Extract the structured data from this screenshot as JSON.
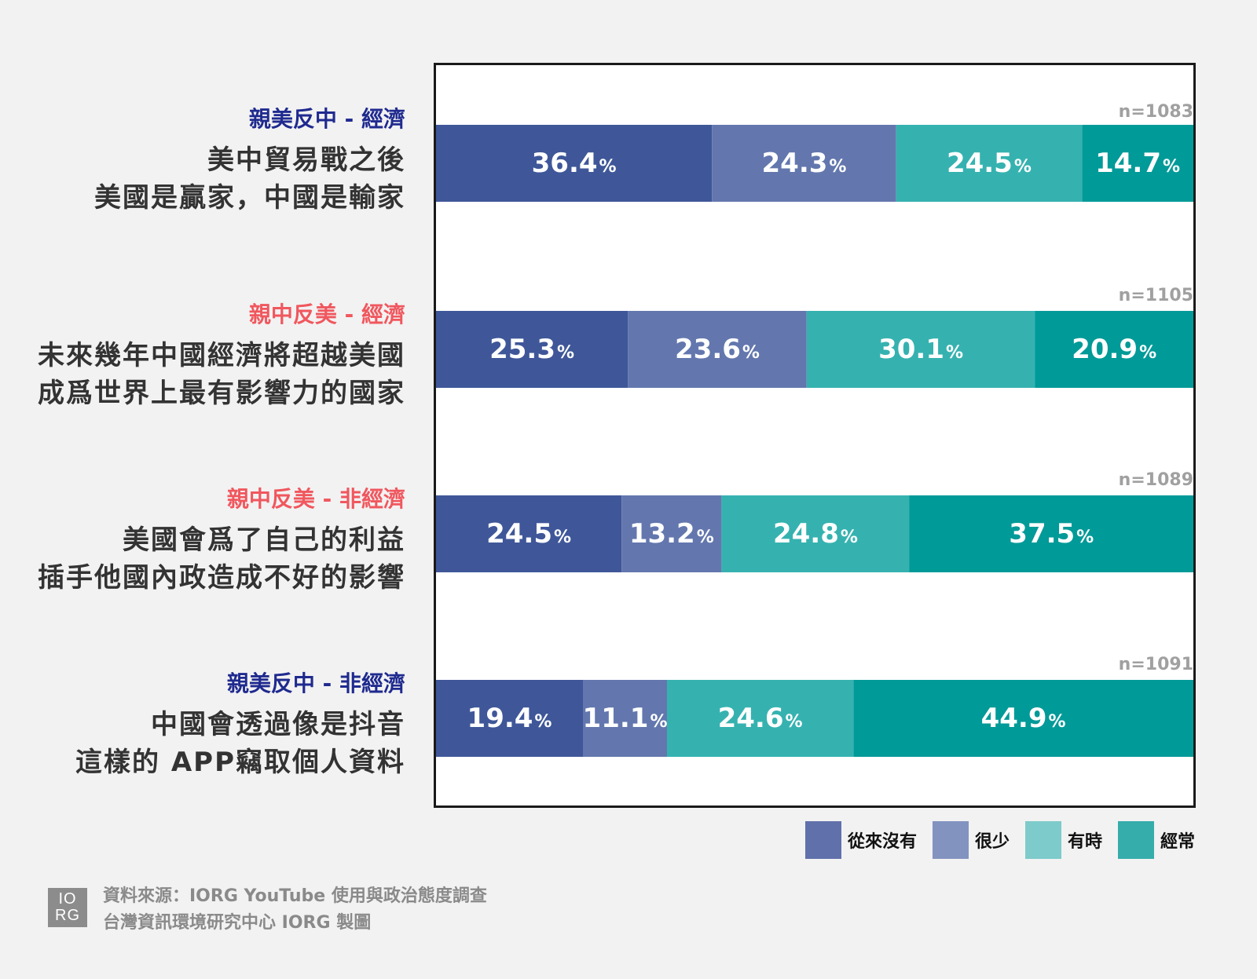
{
  "chart_data": {
    "type": "bar",
    "orientation": "horizontal",
    "stacked": true,
    "unit": "%",
    "categories": [
      {
        "tag": "親美反中 - 經濟",
        "tag_color": "#1f2a8f",
        "lines": [
          "美中貿易戰之後",
          "美國是贏家，中國是輸家"
        ],
        "n": "n=1083"
      },
      {
        "tag": "親中反美 - 經濟",
        "tag_color": "#f0575e",
        "lines": [
          "未來幾年中國經濟將超越美國",
          "成爲世界上最有影響力的國家"
        ],
        "n": "n=1105"
      },
      {
        "tag": "親中反美 - 非經濟",
        "tag_color": "#f0575e",
        "lines": [
          "美國會爲了自己的利益",
          "插手他國內政造成不好的影響"
        ],
        "n": "n=1089"
      },
      {
        "tag": "親美反中 - 非經濟",
        "tag_color": "#1f2a8f",
        "lines": [
          "中國會透過像是抖音",
          "這樣的 APP竊取個人資料"
        ],
        "n": "n=1091"
      }
    ],
    "series": [
      {
        "name": "從來沒有",
        "color": "#3f5799",
        "legend_color": "#6070ab",
        "values": [
          36.4,
          25.3,
          24.5,
          19.4
        ]
      },
      {
        "name": "很少",
        "color": "#6377ae",
        "legend_color": "#8393c0",
        "values": [
          24.3,
          23.6,
          13.2,
          11.1
        ]
      },
      {
        "name": "有時",
        "color": "#35b2b0",
        "legend_color": "#7dcbca",
        "values": [
          24.5,
          30.1,
          24.8,
          24.6
        ]
      },
      {
        "name": "經常",
        "color": "#009a98",
        "legend_color": "#35adab",
        "values": [
          14.7,
          20.9,
          37.5,
          44.9
        ]
      }
    ],
    "value_labels": [
      [
        "36.4",
        "24.3",
        "24.5",
        "14.7"
      ],
      [
        "25.3",
        "23.6",
        "30.1",
        "20.9"
      ],
      [
        "24.5",
        "13.2",
        "24.8",
        "37.5"
      ],
      [
        "19.4",
        "11.1",
        "24.6",
        "44.9"
      ]
    ],
    "xlim": [
      0,
      100
    ],
    "grid": false,
    "legend_placement": "bottom-right"
  },
  "footer": {
    "logo_top": "IO",
    "logo_bottom": "RG",
    "source_line1": "資料來源：IORG YouTube 使用與政治態度調查",
    "source_line2": "台灣資訊環境研究中心 IORG 製圖"
  }
}
